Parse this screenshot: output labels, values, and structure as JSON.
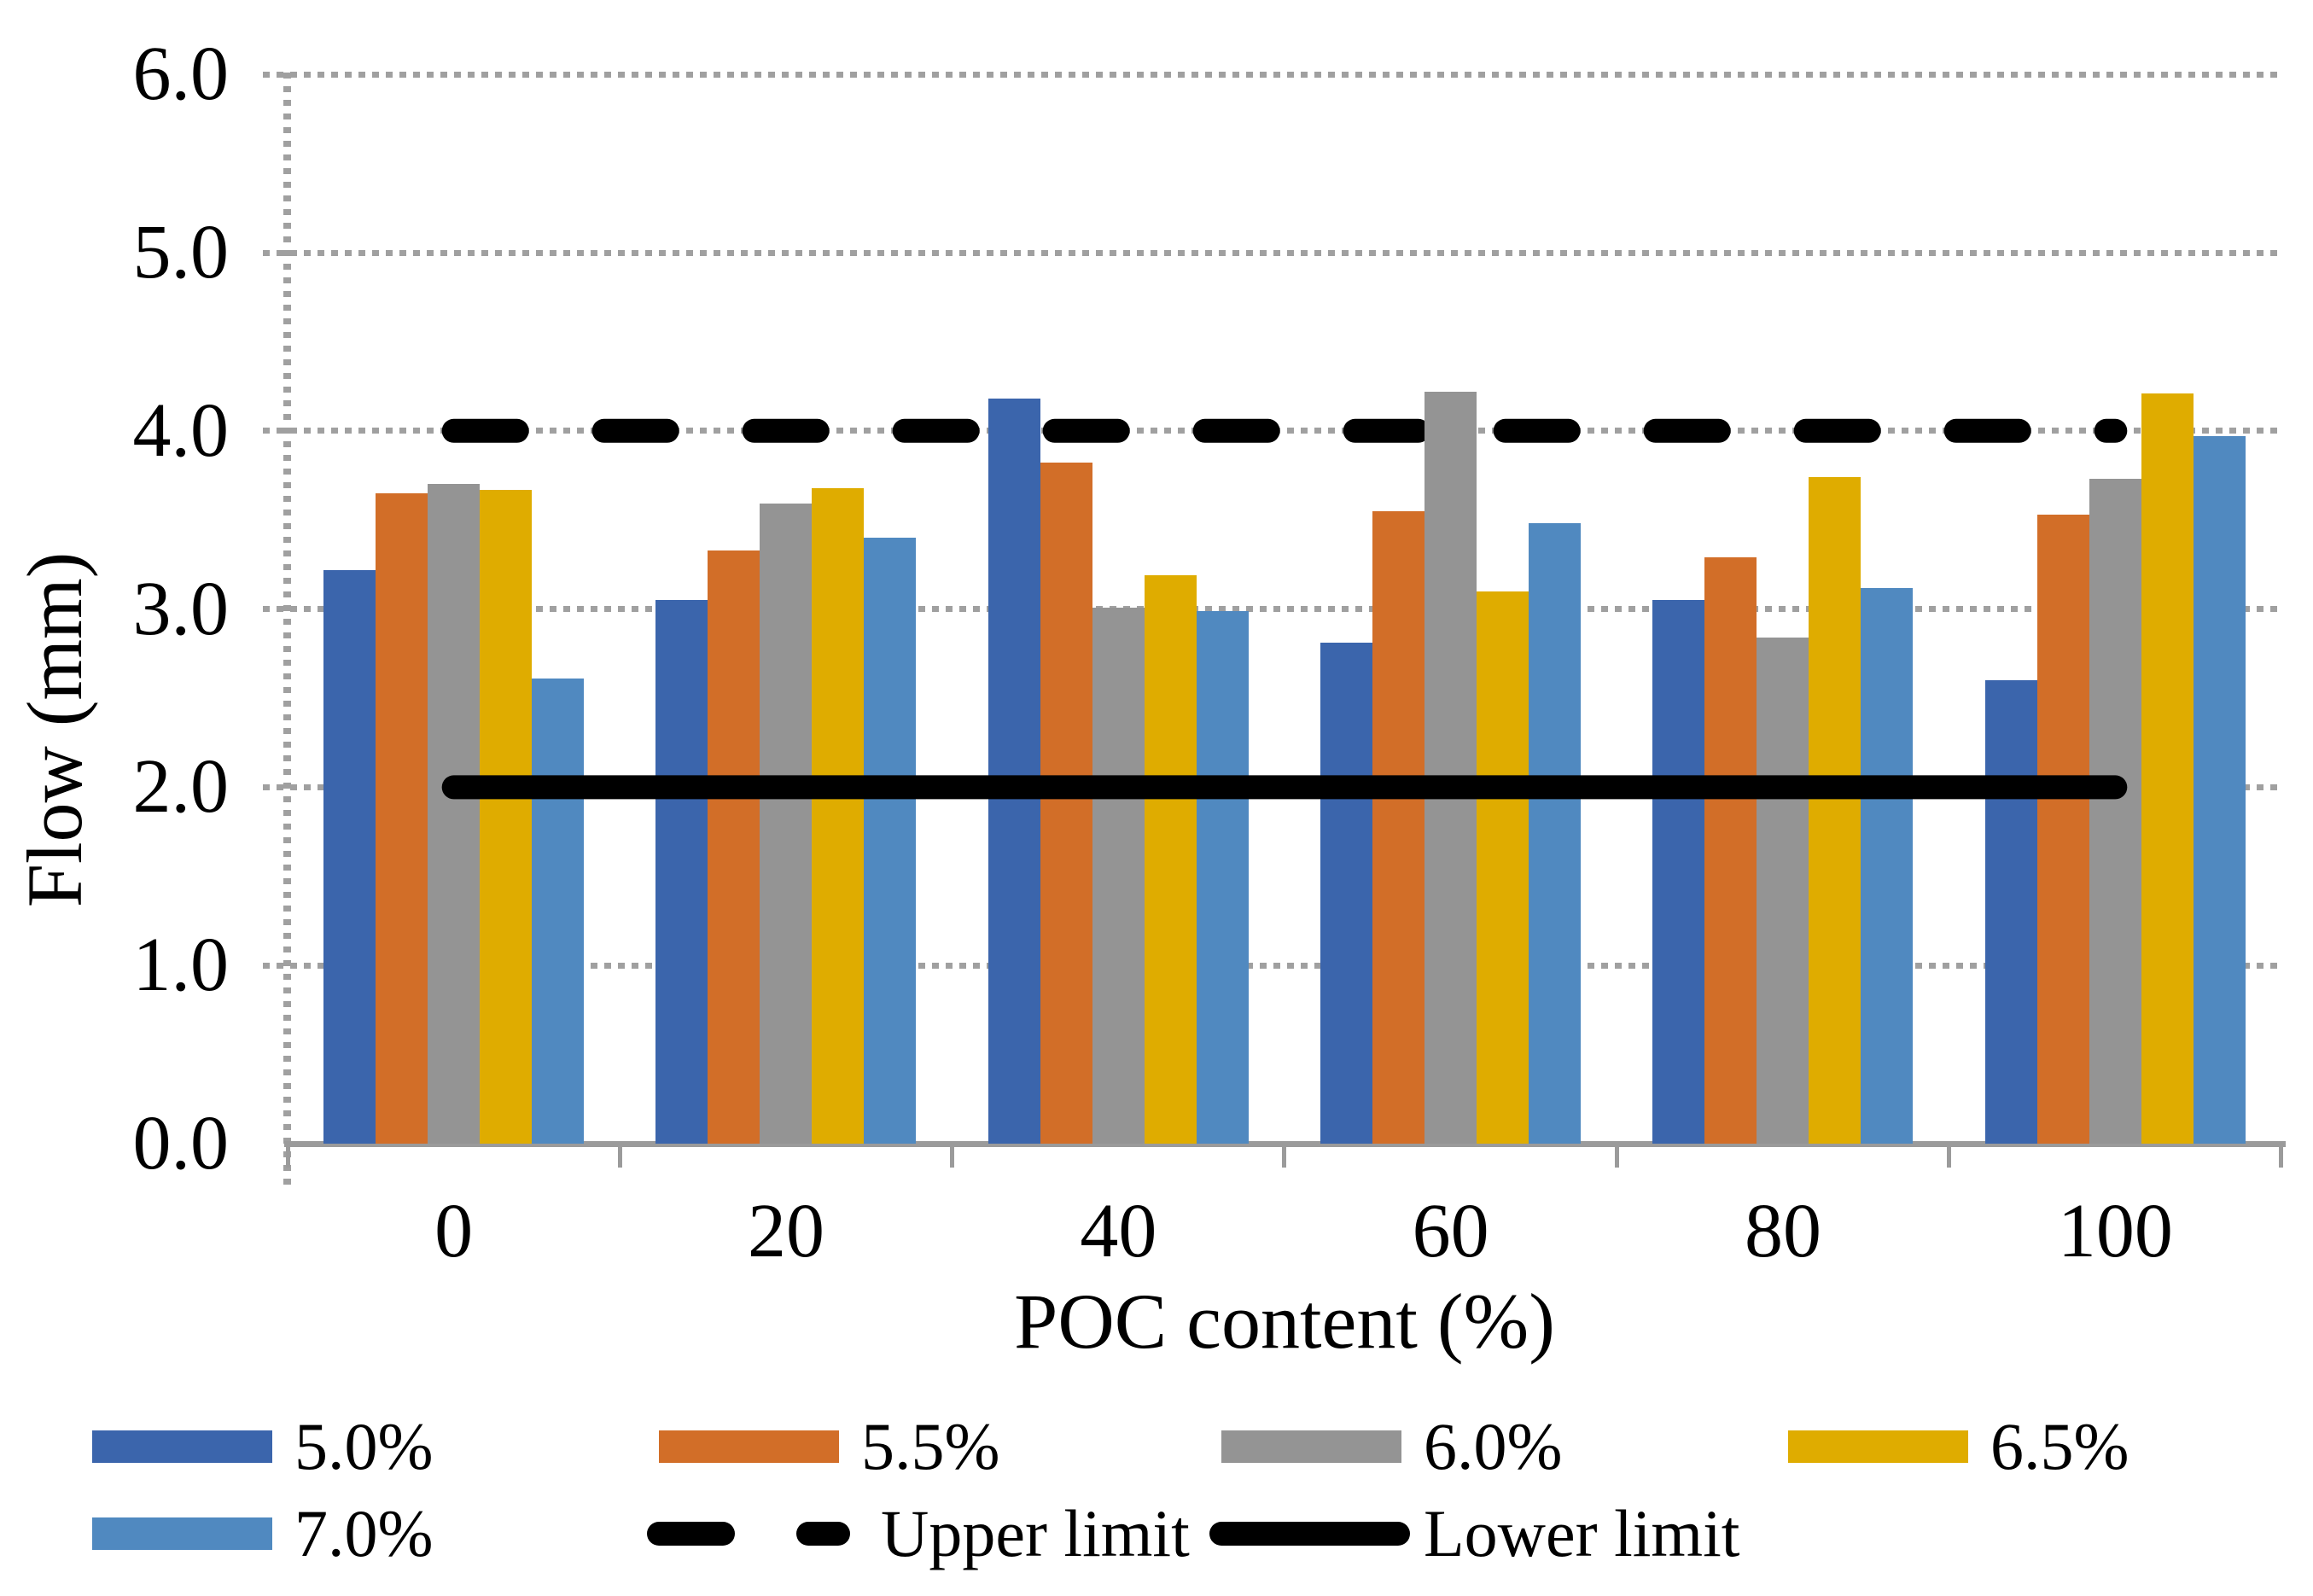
{
  "chart_data": {
    "type": "bar",
    "title": "",
    "xlabel": "POC content (%)",
    "ylabel": "Flow (mm)",
    "categories": [
      "0",
      "20",
      "40",
      "60",
      "80",
      "100"
    ],
    "y_tick_labels": [
      "0.0",
      "1.0",
      "2.0",
      "3.0",
      "4.0",
      "5.0",
      "6.0"
    ],
    "ylim": [
      0.0,
      6.0
    ],
    "grid": "horizontal dotted gridlines at every 1.0",
    "legend_position": "bottom",
    "series": [
      {
        "name": "5.0%",
        "color": "#3B65AC",
        "values": [
          3.22,
          3.05,
          4.18,
          2.81,
          3.05,
          2.6
        ]
      },
      {
        "name": "5.5%",
        "color": "#D26E28",
        "values": [
          3.65,
          3.33,
          3.82,
          3.55,
          3.29,
          3.53
        ]
      },
      {
        "name": "6.0%",
        "color": "#949494",
        "values": [
          3.7,
          3.59,
          3.01,
          4.22,
          2.84,
          3.73
        ]
      },
      {
        "name": "6.5%",
        "color": "#DFAC00",
        "values": [
          3.67,
          3.68,
          3.19,
          3.1,
          3.74,
          4.21
        ]
      },
      {
        "name": "7.0%",
        "color": "#5089C0",
        "values": [
          2.61,
          3.4,
          2.99,
          3.48,
          3.12,
          3.97
        ]
      }
    ],
    "limit_lines": [
      {
        "name": "Upper limit",
        "value": 4.0,
        "style": "dashed",
        "color": "#000000"
      },
      {
        "name": "Lower limit",
        "value": 2.0,
        "style": "solid",
        "color": "#000000"
      }
    ],
    "colors": {
      "grid": "#A0A0A0",
      "axis": "#9B9B9B",
      "text": "#000000",
      "background": "#FFFFFF"
    }
  }
}
